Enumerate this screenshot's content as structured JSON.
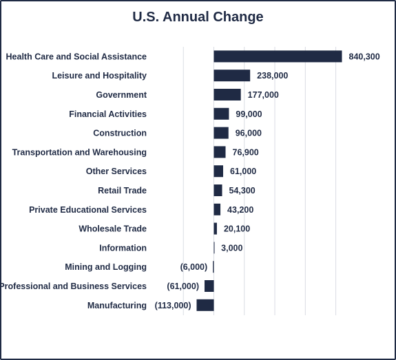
{
  "chart_data": {
    "type": "bar",
    "orientation": "horizontal",
    "title": "U.S. Annual Change",
    "categories": [
      "Health Care and Social Assistance",
      "Leisure and Hospitality",
      "Government",
      "Financial Activities",
      "Construction",
      "Transportation and Warehousing",
      "Other Services",
      "Retail Trade",
      "Private Educational Services",
      "Wholesale Trade",
      "Information",
      "Mining and Logging",
      "Professional and Business Services",
      "Manufacturing"
    ],
    "values": [
      840300,
      238000,
      177000,
      99000,
      96000,
      76900,
      61000,
      54300,
      43200,
      20100,
      3000,
      -6000,
      -61000,
      -113000
    ],
    "value_labels": [
      "840,300",
      "238,000",
      "177,000",
      "99,000",
      "96,000",
      "76,900",
      "61,000",
      "54,300",
      "43,200",
      "20,100",
      "3,000",
      "(6,000)",
      "(61,000)",
      "(113,000)"
    ],
    "xlim": [
      -200000,
      900000
    ],
    "grid": true,
    "legend": "none",
    "bar_color": "#1f2a44"
  }
}
